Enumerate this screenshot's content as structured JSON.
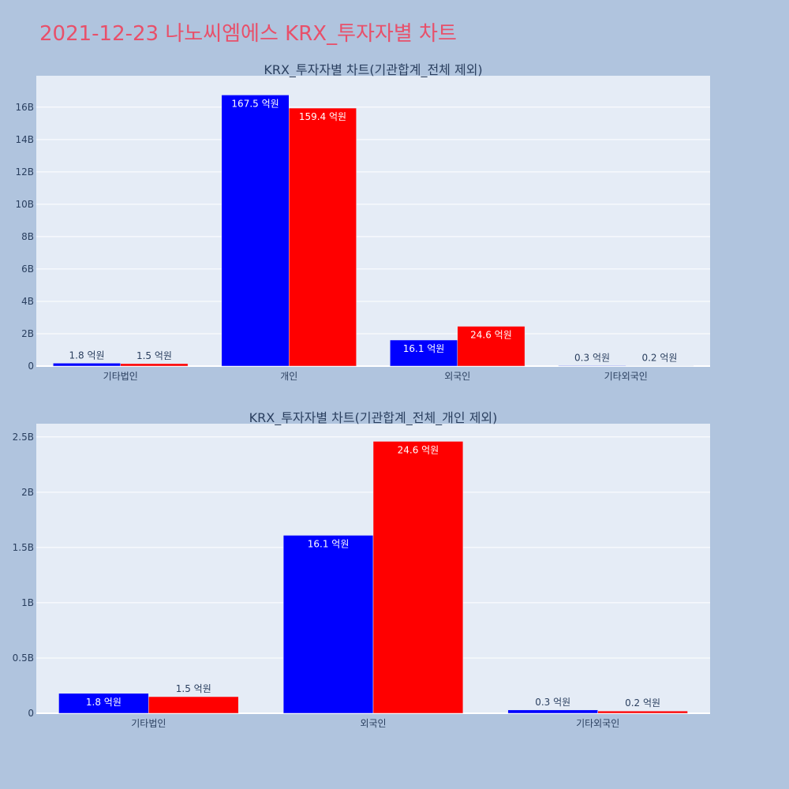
{
  "page_title": "2021-12-23 나노씨엠에스 KRX_투자자별 차트",
  "colors": {
    "buy": "#0000ff",
    "sell": "#ff0000",
    "plot_bg": "#e5ecf6",
    "page_bg": "#b0c4de",
    "title": "#e8506a"
  },
  "chart_data": [
    {
      "type": "bar",
      "title": "KRX_투자자별 차트(기관합계_전체 제외)",
      "categories": [
        "기타법인",
        "개인",
        "외국인",
        "기타외국인"
      ],
      "series": [
        {
          "values": [
            180000000,
            16750000000,
            1610000000,
            30000000
          ],
          "labels": [
            "1.8 억원",
            "167.5 억원",
            "16.1 억원",
            "0.3 억원"
          ]
        },
        {
          "values": [
            150000000,
            15940000000,
            2460000000,
            20000000
          ],
          "labels": [
            "1.5 억원",
            "159.4 억원",
            "24.6 억원",
            "0.2 억원"
          ]
        }
      ],
      "ylim": [
        0,
        17940000000
      ],
      "yticks": [
        0,
        2000000000,
        4000000000,
        6000000000,
        8000000000,
        10000000000,
        12000000000,
        14000000000,
        16000000000
      ],
      "ytick_labels": [
        "0",
        "2B",
        "4B",
        "6B",
        "8B",
        "10B",
        "12B",
        "14B",
        "16B"
      ],
      "grid": true,
      "legend": "none"
    },
    {
      "type": "bar",
      "title": "KRX_투자자별 차트(기관합계_전체_개인 제외)",
      "categories": [
        "기타법인",
        "외국인",
        "기타외국인"
      ],
      "series": [
        {
          "values": [
            180000000,
            1610000000,
            30000000
          ],
          "labels": [
            "1.8 억원",
            "16.1 억원",
            "0.3 억원"
          ]
        },
        {
          "values": [
            150000000,
            2460000000,
            20000000
          ],
          "labels": [
            "1.5 억원",
            "24.6 억원",
            "0.2 억원"
          ]
        }
      ],
      "ylim": [
        0,
        2620000000
      ],
      "yticks": [
        0,
        500000000,
        1000000000,
        1500000000,
        2000000000,
        2500000000
      ],
      "ytick_labels": [
        "0",
        "0.5B",
        "1B",
        "1.5B",
        "2B",
        "2.5B"
      ],
      "grid": true,
      "legend": "none"
    }
  ]
}
